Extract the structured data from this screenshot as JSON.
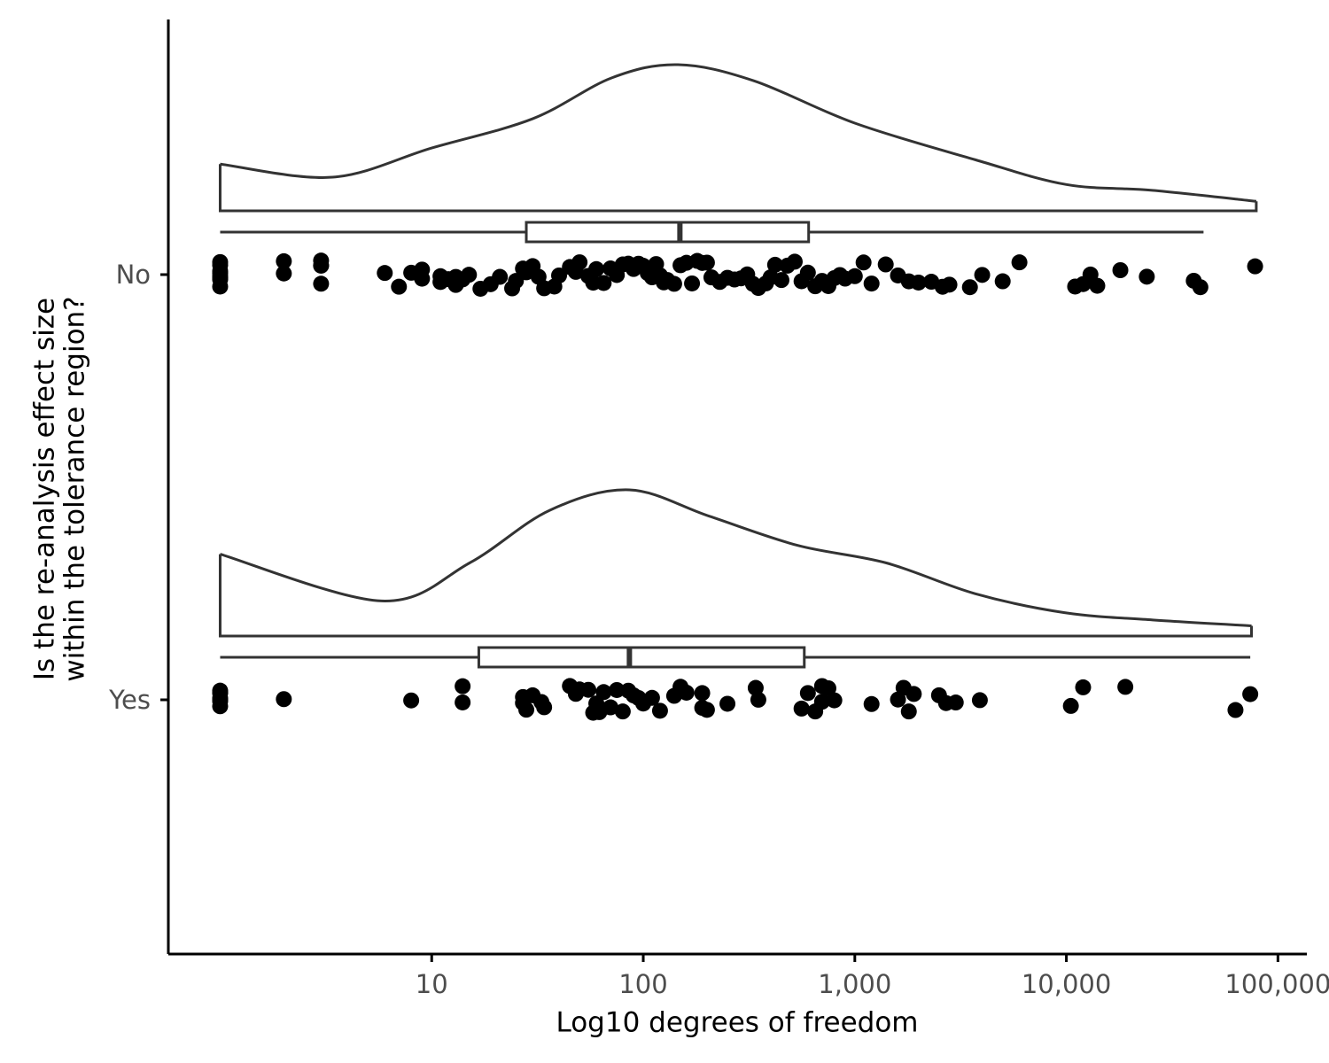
{
  "chart_data": {
    "type": "raincloud",
    "x_label": "Log10 degrees of freedom",
    "y_label": [
      "Is the re-analysis effect size",
      "within the tolerance region?"
    ],
    "log_x": true,
    "xlim": [
      0.569,
      137000
    ],
    "xticks": [
      10,
      100,
      {
        "value": 1000,
        "label": "1,000"
      },
      {
        "value": 10000,
        "label": "10,000"
      },
      {
        "value": 100000,
        "label": "100,000"
      }
    ],
    "categories": [
      "No",
      "Yes"
    ],
    "point_color": "#000000",
    "line_color": "#333333",
    "groups": [
      {
        "values": [
          1,
          1,
          1,
          1,
          1,
          1,
          1,
          1,
          2,
          2,
          3,
          3,
          3,
          3,
          6,
          7,
          8,
          9,
          9,
          11,
          11,
          12,
          13,
          13,
          14,
          15,
          17,
          19,
          21,
          24,
          25,
          27,
          28,
          30,
          32,
          34,
          38,
          40,
          45,
          48,
          50,
          55,
          58,
          60,
          65,
          70,
          75,
          80,
          85,
          90,
          95,
          100,
          105,
          110,
          115,
          120,
          125,
          130,
          140,
          150,
          160,
          170,
          180,
          190,
          200,
          210,
          230,
          250,
          270,
          290,
          310,
          330,
          350,
          380,
          400,
          420,
          450,
          480,
          520,
          560,
          600,
          650,
          700,
          750,
          800,
          850,
          900,
          1000,
          1100,
          1200,
          1400,
          1600,
          1800,
          2000,
          2300,
          2600,
          2800,
          3500,
          4000,
          5000,
          6000,
          11000,
          12000,
          13000,
          14000,
          18000,
          24000,
          40000,
          43000,
          78000
        ],
        "box": {
          "min": 1,
          "q1": 28,
          "median": 149,
          "q3": 605,
          "max": 44500
        },
        "density": {
          "x": [
            1,
            3.4,
            10,
            30,
            71,
            146,
            333,
            1000,
            3700,
            10000,
            25500,
            79000
          ],
          "y": [
            0.32,
            0.23,
            0.43,
            0.63,
            0.91,
            1,
            0.89,
            0.6,
            0.35,
            0.18,
            0.14,
            0.065
          ]
        }
      },
      {
        "values": [
          1,
          1,
          1,
          1,
          1,
          1,
          1,
          2,
          8,
          14,
          14,
          27,
          27,
          28,
          30,
          33,
          34,
          45,
          48,
          50,
          55,
          58,
          60,
          62,
          65,
          70,
          75,
          80,
          85,
          90,
          95,
          100,
          100,
          110,
          120,
          140,
          150,
          160,
          190,
          190,
          200,
          250,
          340,
          350,
          560,
          600,
          650,
          700,
          700,
          750,
          800,
          1200,
          1600,
          1700,
          1800,
          1900,
          2500,
          2700,
          3000,
          3900,
          10500,
          12000,
          19000,
          63000,
          74000
        ],
        "box": {
          "min": 1,
          "q1": 16.7,
          "median": 86,
          "q3": 577,
          "max": 74000
        },
        "density": {
          "x": [
            1,
            5.8,
            15.1,
            36.1,
            86,
            205,
            537,
            1410,
            3700,
            9800,
            25600,
            75000
          ],
          "y": [
            0.56,
            0.24,
            0.5,
            0.86,
            1,
            0.82,
            0.62,
            0.5,
            0.29,
            0.16,
            0.11,
            0.07
          ]
        }
      }
    ]
  }
}
